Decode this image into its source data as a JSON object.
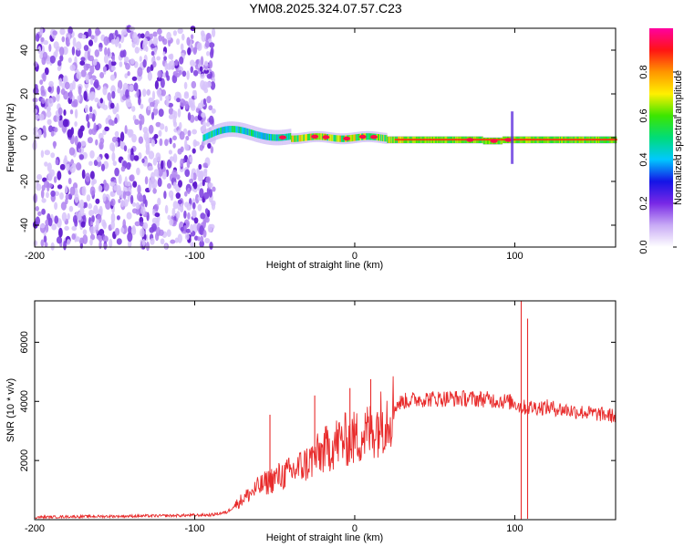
{
  "title": "YM08.2025.324.07.57.C23",
  "colors": {
    "snr_line": "#e82b2b",
    "axes": "#000000",
    "background": "#ffffff"
  },
  "chart_data": [
    {
      "type": "heatmap",
      "name": "spectrogram",
      "xlabel": "Height of straight line (km)",
      "ylabel": "Frequency (Hz)",
      "xlim": [
        -200,
        163
      ],
      "ylim": [
        -50,
        50
      ],
      "xticks": [
        "-200",
        "-100",
        "0",
        "100"
      ],
      "yticks": [
        "40",
        "20",
        "0",
        "-20",
        "-40"
      ],
      "colorbar": {
        "label": "Normalized spectral amplitude",
        "range": [
          0.0,
          1.0
        ],
        "ticks": [
          "0.0",
          "0.2",
          "0.4",
          "0.6",
          "0.8"
        ],
        "colormap": [
          "#ff00ff",
          "#ff0000",
          "#ff8800",
          "#ffff00",
          "#00ff00",
          "#00ffff",
          "#0000ff",
          "#ffffff"
        ]
      },
      "regions": [
        {
          "x_range": [
            -200,
            -88
          ],
          "description": "diffuse noise",
          "amplitude": [
            0.0,
            0.15
          ]
        },
        {
          "x_range": [
            -95,
            163
          ],
          "center_freq_hz": 0,
          "band_width_hz": 6,
          "amplitude": [
            0.3,
            0.9
          ]
        }
      ]
    },
    {
      "type": "line",
      "name": "snr",
      "xlabel": "Height of straight line (km)",
      "ylabel": "SNR (10 * v/v)",
      "xlim": [
        -200,
        163
      ],
      "ylim": [
        0,
        7400
      ],
      "xticks": [
        "-200",
        "-100",
        "0",
        "100"
      ],
      "yticks": [
        "6000",
        "4000",
        "2000"
      ],
      "series": [
        {
          "name": "SNR",
          "x": [
            -200,
            -180,
            -160,
            -140,
            -120,
            -100,
            -90,
            -80,
            -70,
            -60,
            -50,
            -40,
            -30,
            -20,
            -10,
            0,
            10,
            20,
            25,
            30,
            40,
            60,
            80,
            95,
            100,
            104,
            108,
            120,
            140,
            163
          ],
          "y": [
            80,
            100,
            110,
            120,
            130,
            150,
            160,
            250,
            700,
            1100,
            1400,
            1600,
            1900,
            2300,
            2650,
            2750,
            3000,
            3500,
            3850,
            4000,
            4080,
            4100,
            4080,
            4000,
            3950,
            3800,
            3800,
            3800,
            3650,
            3500
          ]
        }
      ],
      "spikes": [
        {
          "x": -53,
          "y": 3550
        },
        {
          "x": -25,
          "y": 4200
        },
        {
          "x": -3,
          "y": 4450
        },
        {
          "x": 10,
          "y": 4750
        },
        {
          "x": 104,
          "y": 7400
        },
        {
          "x": 104,
          "y": 20
        },
        {
          "x": 108,
          "y": 6800
        },
        {
          "x": 108,
          "y": 30
        }
      ]
    }
  ]
}
